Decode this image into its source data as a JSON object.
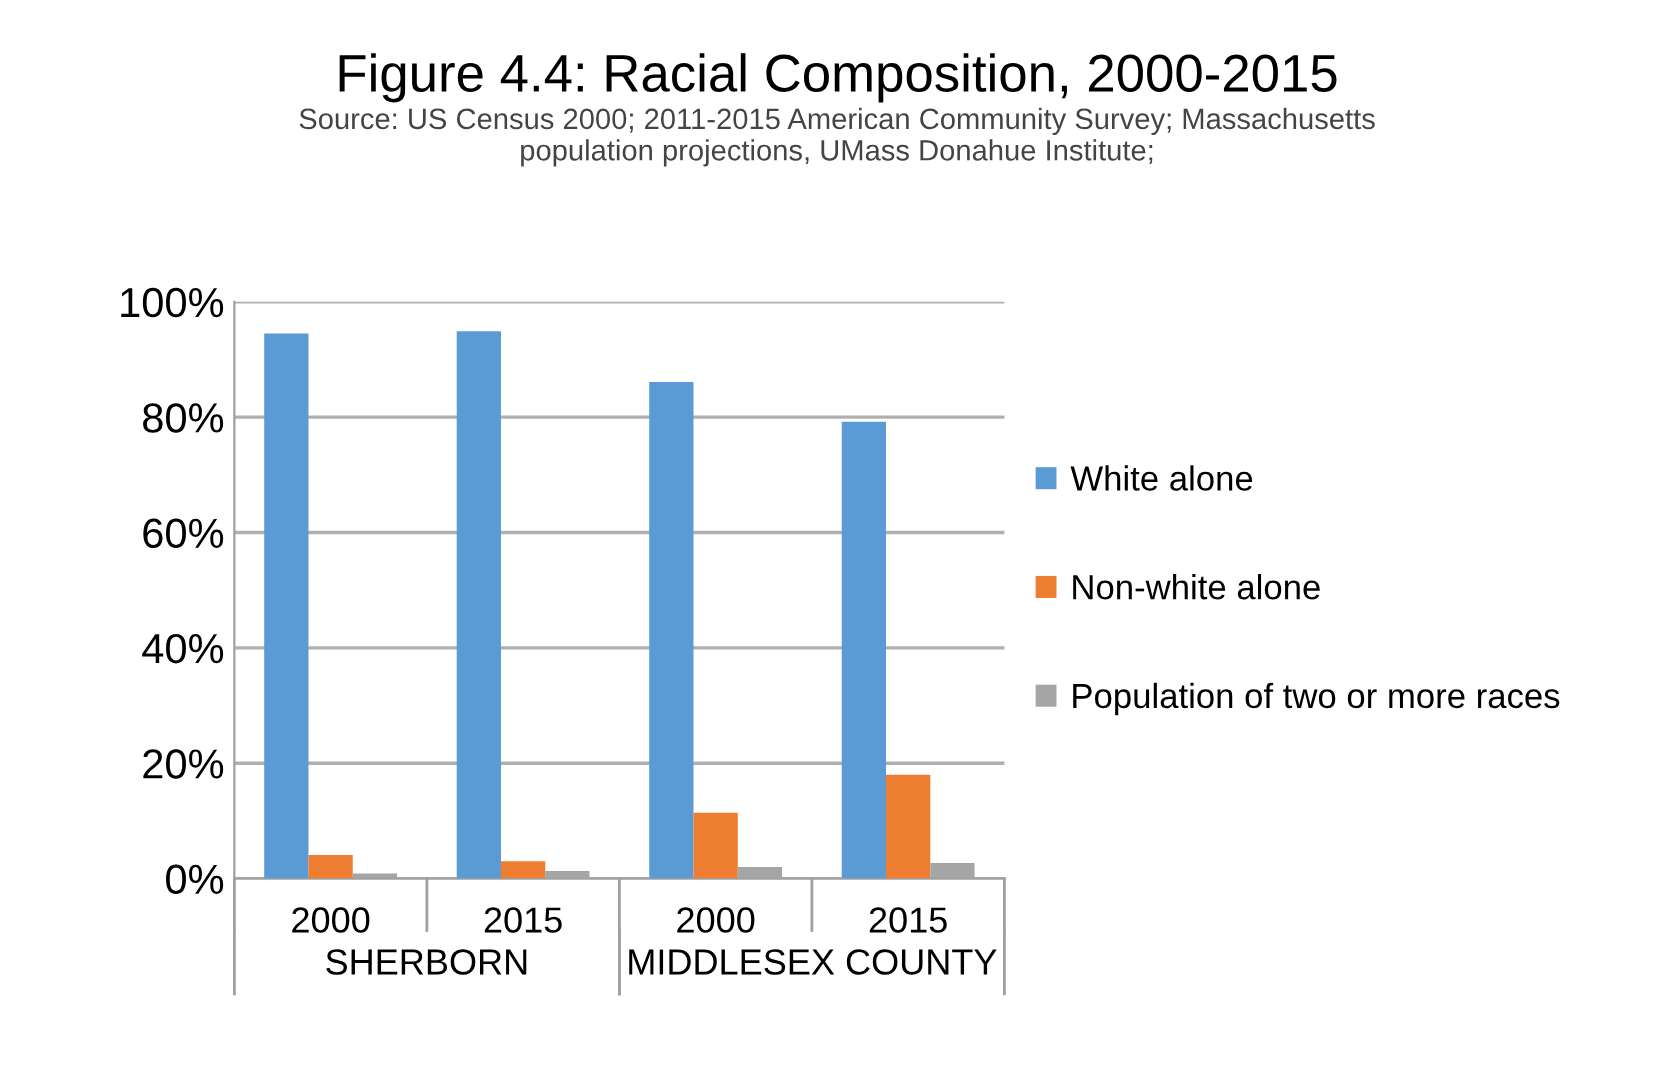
{
  "chart_data": {
    "type": "bar",
    "title": "Figure 4.4: Racial Composition, 2000-2015",
    "subtitle": "Source: US Census 2000; 2011-2015 American Community Survey; Massachusetts\npopulation projections, UMass Donahue Institute;",
    "categories": [
      "2000",
      "2015",
      "2000",
      "2015"
    ],
    "annotations": [
      "SHERBORN",
      "MIDDLESEX COUNTY"
    ],
    "series": [
      {
        "name": "White alone",
        "color": "#5b9bd5",
        "values": [
          94.5,
          94.9,
          86.1,
          79.2
        ]
      },
      {
        "name": "Non-white alone",
        "color": "#ed7d31",
        "values": [
          4.1,
          3.0,
          11.4,
          18.0
        ]
      },
      {
        "name": "Population of two or more races",
        "color": "#a5a5a5",
        "values": [
          0.9,
          1.3,
          2.0,
          2.7
        ]
      }
    ],
    "ylim": [
      0,
      100
    ],
    "yticks": [
      {
        "value": 0,
        "label": "0%"
      },
      {
        "value": 20,
        "label": "20%"
      },
      {
        "value": 40,
        "label": "40%"
      },
      {
        "value": 60,
        "label": "60%"
      },
      {
        "value": 80,
        "label": "80%"
      },
      {
        "value": 100,
        "label": "100%"
      }
    ],
    "grid": "y",
    "legend": "right"
  }
}
